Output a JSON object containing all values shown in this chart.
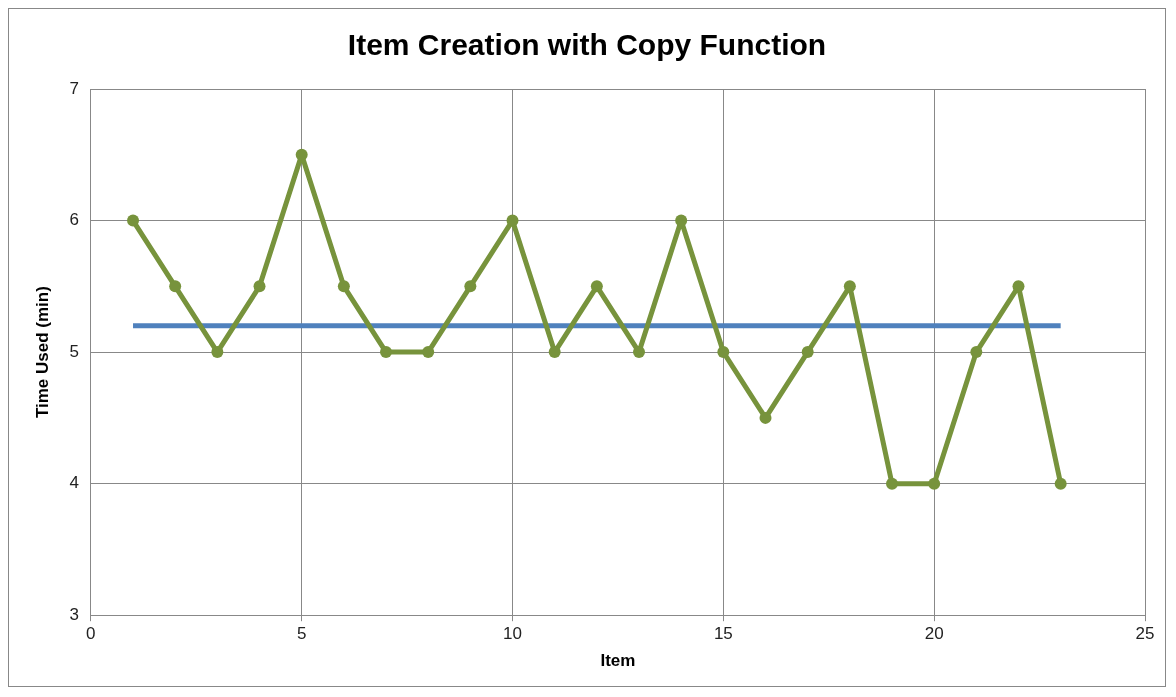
{
  "chart_data": {
    "type": "line",
    "title": "Item Creation with Copy Function",
    "xlabel": "Item",
    "ylabel": "Time Used (min)",
    "xlim": [
      0,
      25
    ],
    "xticks": [
      0,
      5,
      10,
      15,
      20,
      25
    ],
    "ylim": [
      3,
      7
    ],
    "yticks": [
      3,
      4,
      5,
      6,
      7
    ],
    "grid": true,
    "legend": false,
    "series": [
      {
        "color": "#77933c",
        "marker": "circle",
        "x": [
          1,
          2,
          3,
          4,
          5,
          6,
          7,
          8,
          9,
          10,
          11,
          12,
          13,
          14,
          15,
          16,
          17,
          18,
          19,
          20,
          21,
          22,
          23
        ],
        "values": [
          6,
          5.5,
          5,
          5.5,
          6.5,
          5.5,
          5,
          5,
          5.5,
          6,
          5,
          5.5,
          5,
          6,
          5,
          4.5,
          5,
          5.5,
          4,
          4,
          5,
          5.5,
          4
        ]
      },
      {
        "color": "#4f81bd",
        "marker": "none",
        "x": [
          1,
          23
        ],
        "values": [
          5.2,
          5.2
        ]
      }
    ]
  }
}
